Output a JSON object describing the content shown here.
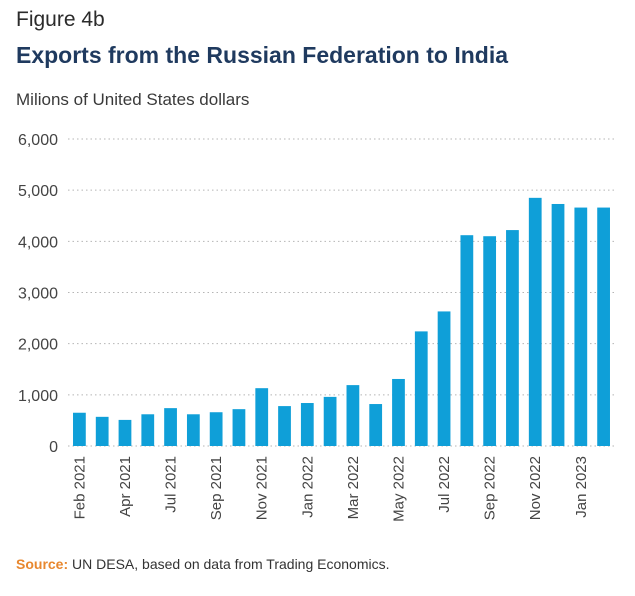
{
  "header": {
    "figure_label": "Figure 4b",
    "title": "Exports from the Russian Federation to India",
    "unit_label": "Milions of United States dollars"
  },
  "footer": {
    "source_label": "Source:",
    "source_text": " UN DESA, based on data from Trading Economics."
  },
  "colors": {
    "bar": "#0f9fd8",
    "grid": "#b5b5b5",
    "axis_text": "#444444",
    "title": "#1f3a5f",
    "source_label": "#e8872e"
  },
  "chart_data": {
    "type": "bar",
    "title": "Exports from the Russian Federation to India",
    "ylabel": "Milions of United States dollars",
    "ylim": [
      0,
      6000
    ],
    "yticks": [
      0,
      1000,
      2000,
      3000,
      4000,
      5000,
      6000
    ],
    "ytick_labels": [
      "0",
      "1,000",
      "2,000",
      "3,000",
      "4,000",
      "5,000",
      "6,000"
    ],
    "grid": "horizontal dotted",
    "categories": [
      "Feb 2021",
      "Mar 2021",
      "Apr 2021",
      "May 2021",
      "Jul 2021",
      "Aug 2021",
      "Sep 2021",
      "Oct 2021",
      "Nov 2021",
      "Dec 2021",
      "Jan 2022",
      "Feb 2022",
      "Mar 2022",
      "Apr 2022",
      "May 2022",
      "Jun 2022",
      "Jul 2022",
      "Aug 2022",
      "Sep 2022",
      "Oct 2022",
      "Nov 2022",
      "Dec 2022",
      "Jan 2023",
      "Feb 2023"
    ],
    "values": [
      650,
      570,
      510,
      620,
      740,
      620,
      660,
      720,
      1130,
      780,
      840,
      960,
      1190,
      820,
      1310,
      2240,
      2630,
      4120,
      4100,
      4220,
      4850,
      4730,
      4660,
      4660
    ],
    "tick_labels": [
      {
        "index": 0,
        "label": "Feb 2021"
      },
      {
        "index": 2,
        "label": "Apr 2021"
      },
      {
        "index": 4,
        "label": "Jul 2021"
      },
      {
        "index": 6,
        "label": "Sep 2021"
      },
      {
        "index": 8,
        "label": "Nov 2021"
      },
      {
        "index": 10,
        "label": "Jan 2022"
      },
      {
        "index": 12,
        "label": "Mar 2022"
      },
      {
        "index": 14,
        "label": "May 2022"
      },
      {
        "index": 16,
        "label": "Jul 2022"
      },
      {
        "index": 18,
        "label": "Sep 2022"
      },
      {
        "index": 20,
        "label": "Nov 2022"
      },
      {
        "index": 22,
        "label": "Jan 2023"
      }
    ]
  }
}
